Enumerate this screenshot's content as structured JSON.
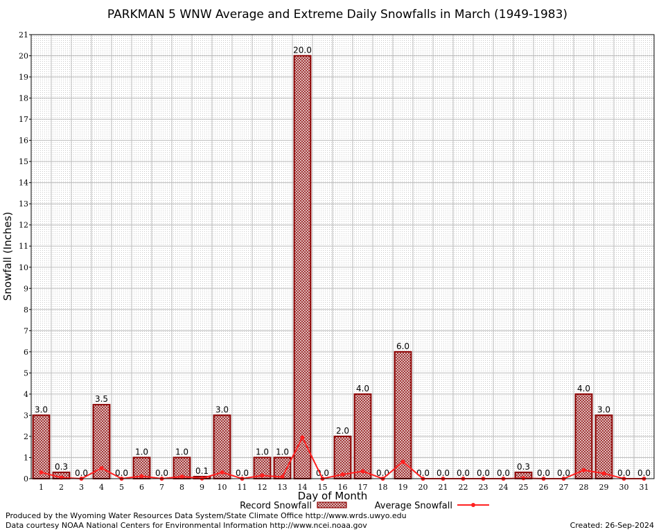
{
  "chart_data": {
    "type": "bar",
    "title": "PARKMAN 5 WNW Average and Extreme Daily Snowfalls in March (1949-1983)",
    "xlabel": "Day of Month",
    "ylabel": "Snowfall (Inches)",
    "ylim": [
      0,
      21
    ],
    "grid": true,
    "legend_position": "bottom-center",
    "categories": [
      "1",
      "2",
      "3",
      "4",
      "5",
      "6",
      "7",
      "8",
      "9",
      "10",
      "11",
      "12",
      "13",
      "14",
      "15",
      "16",
      "17",
      "18",
      "19",
      "20",
      "21",
      "22",
      "23",
      "24",
      "25",
      "26",
      "27",
      "28",
      "29",
      "30",
      "31"
    ],
    "series": [
      {
        "name": "Record Snowfall",
        "type": "bar",
        "values": [
          3.0,
          0.3,
          0.0,
          3.5,
          0.0,
          1.0,
          0.0,
          1.0,
          0.1,
          3.0,
          0.0,
          1.0,
          1.0,
          20.0,
          0.0,
          2.0,
          4.0,
          0.0,
          6.0,
          0.0,
          0.0,
          0.0,
          0.0,
          0.0,
          0.3,
          0.0,
          0.0,
          4.0,
          3.0,
          0.0,
          0.0
        ],
        "labels": [
          "3.0",
          "0.3",
          "0.0",
          "3.5",
          "0.0",
          "1.0",
          "0.0",
          "1.0",
          "0.1",
          "3.0",
          "0.0",
          "1.0",
          "1.0",
          "20.0",
          "0.0",
          "2.0",
          "4.0",
          "0.0",
          "6.0",
          "0.0",
          "0.0",
          "0.0",
          "0.0",
          "0.0",
          "0.3",
          "0.0",
          "0.0",
          "4.0",
          "3.0",
          "0.0",
          "0.0"
        ]
      },
      {
        "name": "Average Snowfall",
        "type": "line",
        "values": [
          0.3,
          0.05,
          0.0,
          0.5,
          0.0,
          0.12,
          0.0,
          0.1,
          0.01,
          0.3,
          0.0,
          0.15,
          0.08,
          1.95,
          0.0,
          0.2,
          0.35,
          0.0,
          0.8,
          0.0,
          0.0,
          0.0,
          0.0,
          0.0,
          0.02,
          0.0,
          0.0,
          0.4,
          0.25,
          0.0,
          0.0
        ]
      }
    ],
    "yticks": [
      "0",
      "1",
      "2",
      "3",
      "4",
      "5",
      "6",
      "7",
      "8",
      "9",
      "10",
      "11",
      "12",
      "13",
      "14",
      "15",
      "16",
      "17",
      "18",
      "19",
      "20",
      "21"
    ]
  },
  "colors": {
    "bar_edge": "#8b0000",
    "bar_fill": "#c9a3a3",
    "line": "#ff2020",
    "grid_major": "#bdbdbd",
    "grid_minor": "#d0d0d0"
  },
  "footer": {
    "produced_by": "Produced by the Wyoming Water Resources Data System/State Climate Office http://www.wrds.uwyo.edu",
    "courtesy": "Data courtesy NOAA National Centers for Environmental Information http://www.ncei.noaa.gov",
    "created": "Created:  26-Sep-2024"
  }
}
